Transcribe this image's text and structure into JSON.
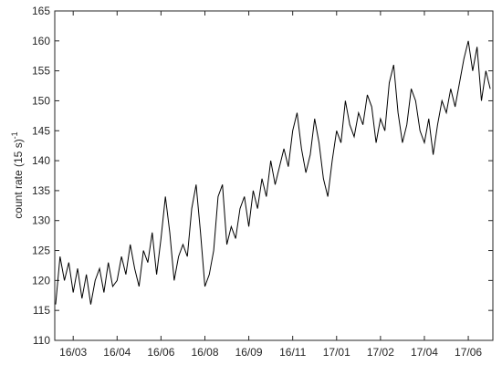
{
  "chart_data": {
    "type": "line",
    "y_label": "count rate (15 s)",
    "y_label_exponent": "-1",
    "x": [
      -0.4,
      -0.3,
      -0.2,
      -0.1,
      0,
      0.1,
      0.2,
      0.3,
      0.4,
      0.5,
      0.6,
      0.7,
      0.8,
      0.9,
      1.0,
      1.1,
      1.2,
      1.3,
      1.4,
      1.5,
      1.6,
      1.7,
      1.8,
      1.9,
      2.0,
      2.1,
      2.2,
      2.3,
      2.4,
      2.5,
      2.6,
      2.7,
      2.8,
      2.9,
      3.0,
      3.1,
      3.2,
      3.3,
      3.4,
      3.5,
      3.6,
      3.7,
      3.8,
      3.9,
      4.0,
      4.1,
      4.2,
      4.3,
      4.4,
      4.5,
      4.6,
      4.7,
      4.8,
      4.9,
      5.0,
      5.1,
      5.2,
      5.3,
      5.4,
      5.5,
      5.6,
      5.7,
      5.8,
      5.9,
      6.0,
      6.1,
      6.2,
      6.3,
      6.4,
      6.5,
      6.6,
      6.7,
      6.8,
      6.9,
      7.0,
      7.1,
      7.2,
      7.3,
      7.4,
      7.5,
      7.6,
      7.7,
      7.8,
      7.9,
      8.0,
      8.1,
      8.2,
      8.3,
      8.4,
      8.5,
      8.6,
      8.7,
      8.8,
      8.9,
      9.0,
      9.1,
      9.2,
      9.3,
      9.4,
      9.5
    ],
    "series": [
      {
        "color": "#000000",
        "values": [
          116,
          124,
          120,
          123,
          118,
          122,
          117,
          121,
          116,
          120,
          122,
          118,
          123,
          119,
          120,
          124,
          121,
          126,
          122,
          119,
          125,
          123,
          128,
          121,
          127,
          134,
          128,
          120,
          124,
          126,
          124,
          132,
          136,
          128,
          119,
          121,
          125,
          134,
          136,
          126,
          129,
          127,
          132,
          134,
          129,
          135,
          132,
          137,
          134,
          140,
          136,
          139,
          142,
          139,
          145,
          148,
          142,
          138,
          141,
          147,
          143,
          137,
          134,
          140,
          145,
          143,
          150,
          146,
          144,
          148,
          146,
          151,
          149,
          143,
          147,
          145,
          153,
          156,
          148,
          143,
          146,
          152,
          150,
          145,
          143,
          147,
          141,
          146,
          150,
          148,
          152,
          149,
          153,
          157,
          160,
          155,
          159,
          150,
          155,
          152
        ]
      }
    ],
    "xlim": [
      -0.42,
      9.56
    ],
    "xticks": [
      {
        "value": 0,
        "label": "16/03"
      },
      {
        "value": 1,
        "label": "16/04"
      },
      {
        "value": 2,
        "label": "16/06"
      },
      {
        "value": 3,
        "label": "16/08"
      },
      {
        "value": 4,
        "label": "16/09"
      },
      {
        "value": 5,
        "label": "16/11"
      },
      {
        "value": 6,
        "label": "17/01"
      },
      {
        "value": 7,
        "label": "17/02"
      },
      {
        "value": 8,
        "label": "17/04"
      },
      {
        "value": 9,
        "label": "17/06"
      }
    ],
    "ylim": [
      110,
      165
    ],
    "yticks": [
      110,
      115,
      120,
      125,
      130,
      135,
      140,
      145,
      150,
      155,
      160,
      165
    ],
    "grid": false
  }
}
